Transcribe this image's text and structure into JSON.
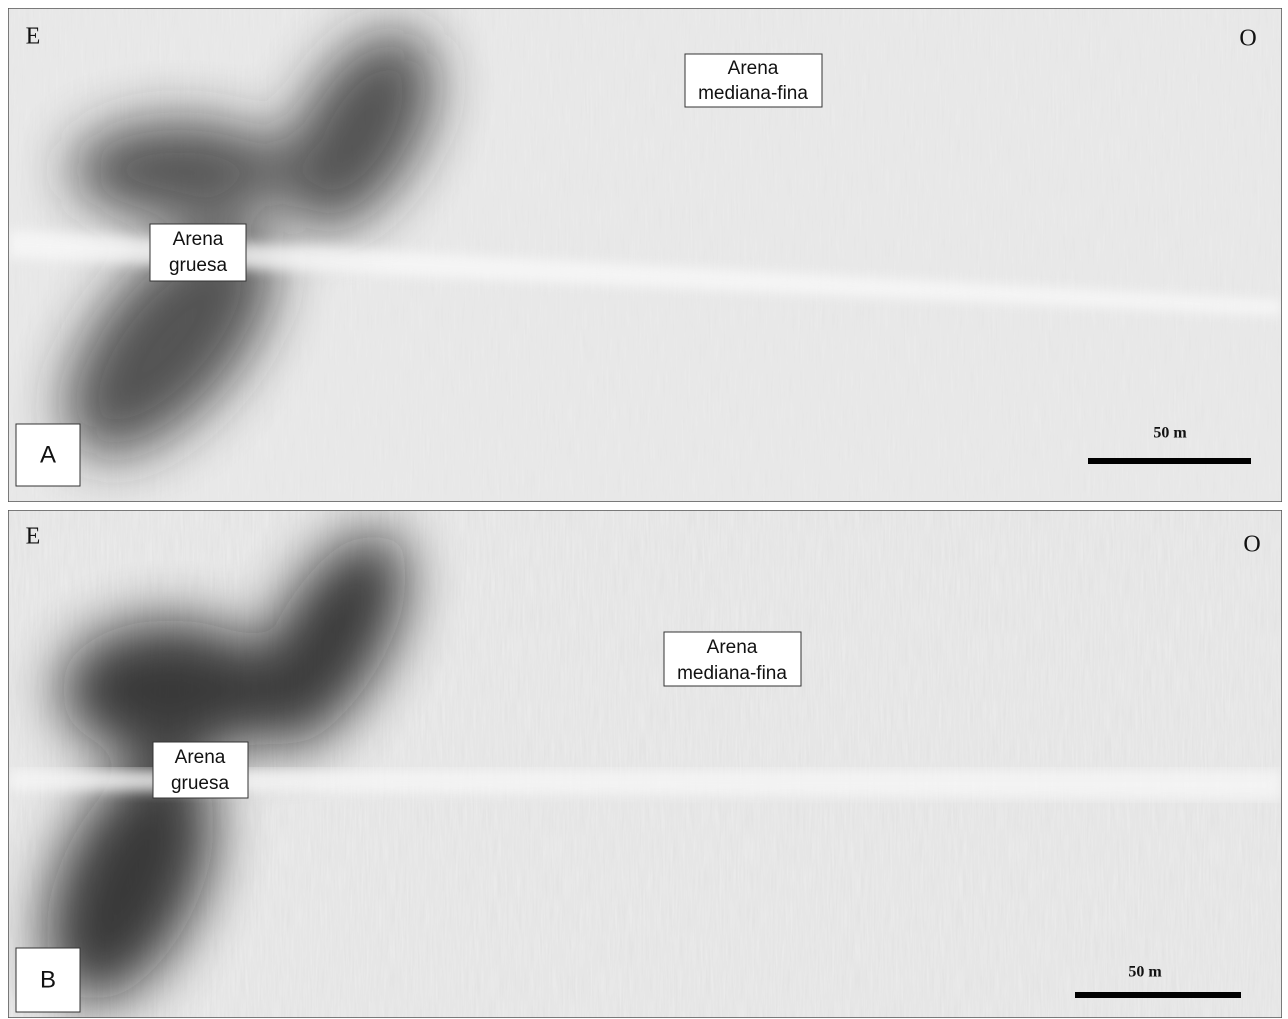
{
  "panels": [
    {
      "letter": "A",
      "east": "E",
      "west": "O",
      "fine_label": [
        "Arena",
        "mediana-fina"
      ],
      "coarse_label": [
        "Arena",
        "gruesa"
      ],
      "scale": "50 m"
    },
    {
      "letter": "B",
      "east": "E",
      "west": "O",
      "fine_label": [
        "Arena",
        "mediana-fina"
      ],
      "coarse_label": [
        "Arena",
        "gruesa"
      ],
      "scale": "50 m"
    }
  ]
}
